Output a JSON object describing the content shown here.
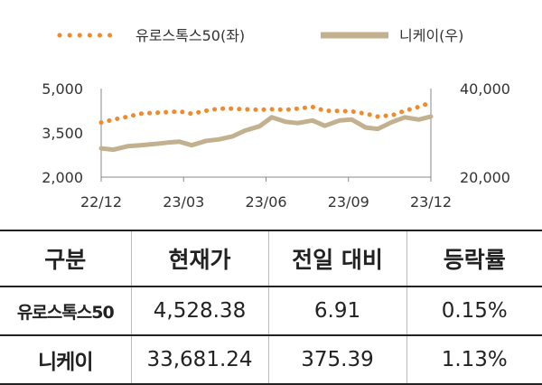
{
  "chart_data": {
    "type": "line",
    "title": "",
    "x_tick_labels": [
      "22/12",
      "23/03",
      "23/06",
      "23/09",
      "23/12"
    ],
    "y_left": {
      "lim": [
        2000,
        5000
      ],
      "ticks": [
        "5,000",
        "3,500",
        "2,000"
      ],
      "tick_values": [
        5000,
        3500,
        2000
      ]
    },
    "y_right": {
      "lim": [
        20000,
        40000
      ],
      "ticks": [
        "40,000",
        "20,000"
      ],
      "tick_values": [
        40000,
        20000
      ]
    },
    "legend_placement": "top",
    "grid": false,
    "series": [
      {
        "name": "유로스톡스50(좌)",
        "axis": "left",
        "style": "dotted",
        "color": "#f08a2c",
        "x": [
          "2022-12-01",
          "2022-12-15",
          "2023-01-01",
          "2023-01-15",
          "2023-02-01",
          "2023-02-15",
          "2023-03-01",
          "2023-03-15",
          "2023-04-01",
          "2023-04-15",
          "2023-05-01",
          "2023-05-15",
          "2023-06-01",
          "2023-06-15",
          "2023-07-01",
          "2023-07-15",
          "2023-08-01",
          "2023-08-15",
          "2023-09-01",
          "2023-09-15",
          "2023-10-01",
          "2023-10-15",
          "2023-11-01",
          "2023-11-15",
          "2023-12-01",
          "2023-12-15"
        ],
        "y": [
          3850,
          3950,
          4050,
          4150,
          4180,
          4200,
          4230,
          4150,
          4250,
          4320,
          4320,
          4300,
          4280,
          4300,
          4280,
          4320,
          4380,
          4250,
          4240,
          4230,
          4150,
          4050,
          4100,
          4250,
          4380,
          4528
        ]
      },
      {
        "name": "니케이(우)",
        "axis": "right",
        "style": "solid",
        "color": "#c2b08f",
        "x": [
          "2022-12-01",
          "2022-12-15",
          "2023-01-01",
          "2023-01-15",
          "2023-02-01",
          "2023-02-15",
          "2023-03-01",
          "2023-03-15",
          "2023-04-01",
          "2023-04-15",
          "2023-05-01",
          "2023-05-15",
          "2023-06-01",
          "2023-06-15",
          "2023-07-01",
          "2023-07-15",
          "2023-08-01",
          "2023-08-15",
          "2023-09-01",
          "2023-09-15",
          "2023-10-01",
          "2023-10-15",
          "2023-11-01",
          "2023-11-15",
          "2023-12-01",
          "2023-12-15"
        ],
        "y": [
          26500,
          26200,
          27000,
          27200,
          27500,
          27800,
          28000,
          27200,
          28200,
          28500,
          29200,
          30500,
          31500,
          33500,
          32500,
          32200,
          32800,
          31600,
          32800,
          33000,
          31200,
          30900,
          32500,
          33500,
          33000,
          33681
        ]
      }
    ],
    "x_range": [
      "2022-12-01",
      "2023-12-15"
    ]
  },
  "table": {
    "headers": [
      "구분",
      "현재가",
      "전일 대비",
      "등락률"
    ],
    "rows": [
      [
        "유로스톡스50",
        "4,528.38",
        "6.91",
        "0.15%"
      ],
      [
        "니케이",
        "33,681.24",
        "375.39",
        "1.13%"
      ]
    ]
  }
}
